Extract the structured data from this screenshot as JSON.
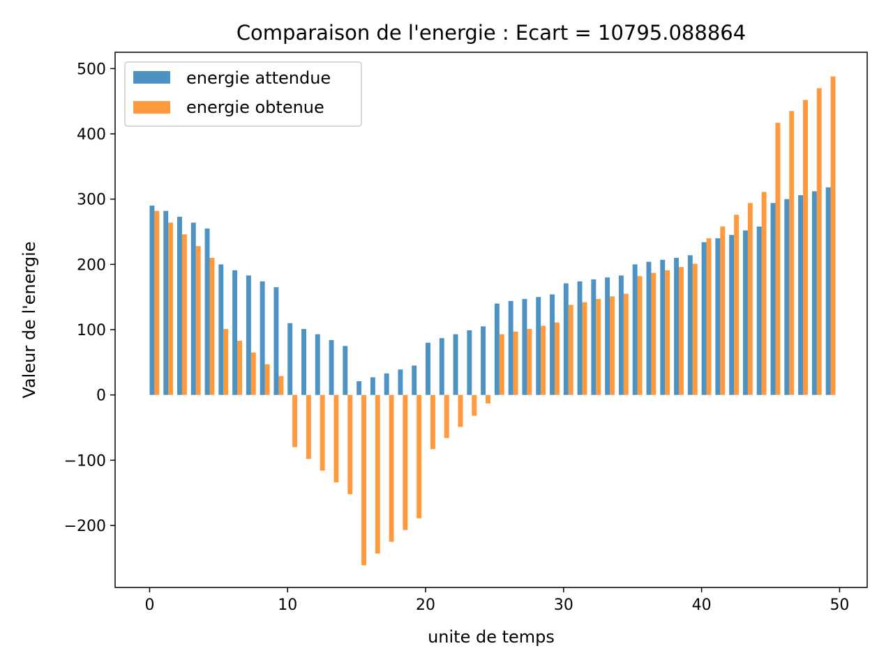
{
  "chart_data": {
    "type": "bar",
    "title": "Comparaison de l'energie : Ecart =  10795.088864",
    "xlabel": "unite de temps",
    "ylabel": "Valeur de l'energie",
    "xlim": [
      -2.5,
      52
    ],
    "ylim": [
      -295,
      525
    ],
    "xticks": [
      0,
      10,
      20,
      30,
      40,
      50
    ],
    "yticks": [
      -200,
      -100,
      0,
      100,
      200,
      300,
      400,
      500
    ],
    "x_tick_labels": [
      "0",
      "10",
      "20",
      "30",
      "40",
      "50"
    ],
    "y_tick_labels": [
      "−200",
      "−100",
      "0",
      "100",
      "200",
      "300",
      "400",
      "500"
    ],
    "grid": false,
    "legend_position": "upper left",
    "bar_offset": 0.35,
    "bar_width": 0.35,
    "x": [
      0,
      1,
      2,
      3,
      4,
      5,
      6,
      7,
      8,
      9,
      10,
      11,
      12,
      13,
      14,
      15,
      16,
      17,
      18,
      19,
      20,
      21,
      22,
      23,
      24,
      25,
      26,
      27,
      28,
      29,
      30,
      31,
      32,
      33,
      34,
      35,
      36,
      37,
      38,
      39,
      40,
      41,
      42,
      43,
      44,
      45,
      46,
      47,
      48,
      49
    ],
    "series": [
      {
        "name": "energie attendue",
        "color": "#1f77b4",
        "values": [
          290,
          282,
          273,
          264,
          255,
          200,
          191,
          183,
          174,
          165,
          110,
          101,
          93,
          84,
          75,
          21,
          27,
          33,
          39,
          45,
          80,
          87,
          93,
          99,
          105,
          140,
          144,
          147,
          150,
          154,
          171,
          174,
          177,
          180,
          183,
          200,
          204,
          207,
          210,
          214,
          234,
          240,
          245,
          252,
          258,
          294,
          300,
          306,
          312,
          318
        ]
      },
      {
        "name": "energie obtenue",
        "color": "#ff7f0e",
        "values": [
          282,
          264,
          246,
          228,
          210,
          101,
          83,
          65,
          47,
          29,
          -80,
          -98,
          -116,
          -134,
          -152,
          -261,
          -243,
          -225,
          -207,
          -189,
          -83,
          -66,
          -49,
          -32,
          -13,
          93,
          97,
          101,
          106,
          111,
          138,
          142,
          147,
          151,
          155,
          182,
          187,
          191,
          196,
          201,
          240,
          258,
          276,
          294,
          311,
          417,
          435,
          452,
          470,
          488
        ]
      }
    ]
  }
}
